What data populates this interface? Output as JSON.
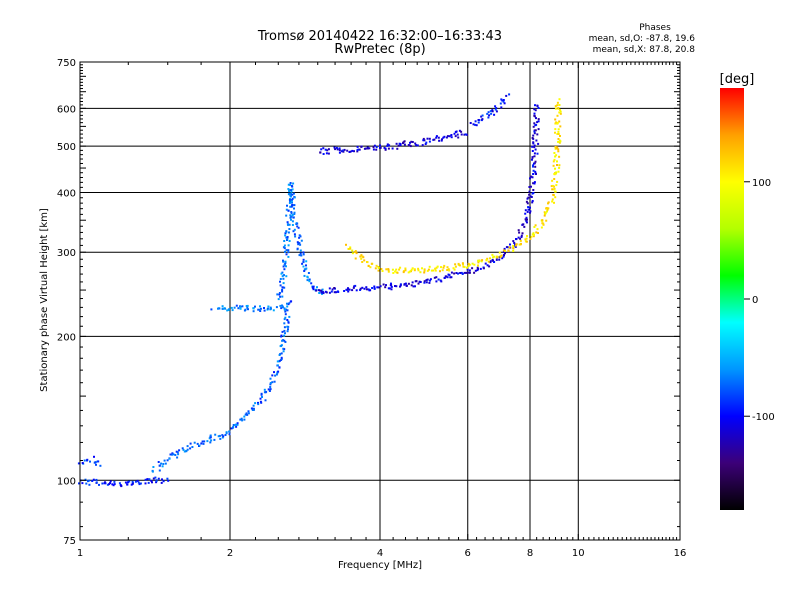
{
  "chart_data": {
    "type": "scatter",
    "title": "Tromsø 20140422 16:32:00–16:33:43",
    "subtitle": "RwPretec (8p)",
    "xlabel": "Frequency [MHz]",
    "ylabel": "Stationary phase Virtual Height [km]",
    "xscale": "log2",
    "yscale": "log",
    "xlim": [
      1,
      16
    ],
    "ylim": [
      75,
      750
    ],
    "grid": true,
    "x_ticks": [
      1,
      2,
      4,
      6,
      8,
      10,
      16
    ],
    "x_tick_labels": [
      "1",
      "2",
      "4",
      "6",
      "8",
      "10",
      "16"
    ],
    "y_ticks": [
      75,
      100,
      200,
      300,
      400,
      500,
      600,
      750
    ],
    "y_tick_labels": [
      "75",
      "100",
      "200",
      "300",
      "400",
      "500",
      "600",
      "750"
    ],
    "info": {
      "header": "Phases",
      "line_o": "mean, sd,O: -87.8, 19.6",
      "line_x": "mean, sd,X:  87.8, 20.8"
    },
    "colorbar": {
      "label": "[deg]",
      "range": [
        -180,
        180
      ],
      "ticks": [
        100,
        0,
        -100
      ],
      "tick_labels": [
        "100",
        "0",
        "-100"
      ],
      "colors": [
        "#000000",
        "#3c0078",
        "#0000ff",
        "#0096ff",
        "#00ffff",
        "#00ff00",
        "#b4ff00",
        "#ffff00",
        "#ffa000",
        "#ff0000"
      ]
    },
    "traces": [
      {
        "name": "",
        "phase": -95,
        "points": [
          [
            1.0,
            100
          ],
          [
            1.1,
            99
          ],
          [
            1.2,
            99
          ],
          [
            1.35,
            100
          ],
          [
            1.5,
            101
          ]
        ]
      },
      {
        "name": "",
        "phase": -85,
        "points": [
          [
            1.0,
            110
          ],
          [
            1.05,
            111
          ],
          [
            1.1,
            108
          ]
        ]
      },
      {
        "name": "",
        "phase": -75,
        "points": [
          [
            1.4,
            105
          ],
          [
            1.5,
            112
          ],
          [
            1.65,
            118
          ],
          [
            1.8,
            122
          ],
          [
            1.95,
            125
          ],
          [
            2.1,
            135
          ],
          [
            2.3,
            148
          ],
          [
            2.45,
            165
          ],
          [
            2.52,
            185
          ],
          [
            2.57,
            210
          ],
          [
            2.62,
            240
          ]
        ]
      },
      {
        "name": "",
        "phase": -65,
        "points": [
          [
            1.85,
            230
          ],
          [
            2.0,
            230
          ],
          [
            2.2,
            230
          ],
          [
            2.45,
            230
          ],
          [
            2.6,
            230
          ]
        ]
      },
      {
        "name": "",
        "phase": -70,
        "points": [
          [
            2.5,
            240
          ],
          [
            2.55,
            265
          ],
          [
            2.58,
            300
          ],
          [
            2.6,
            340
          ],
          [
            2.62,
            380
          ],
          [
            2.63,
            420
          ],
          [
            2.66,
            380
          ],
          [
            2.7,
            340
          ],
          [
            2.76,
            300
          ],
          [
            2.84,
            270
          ],
          [
            2.95,
            253
          ],
          [
            3.1,
            247
          ]
        ]
      },
      {
        "name": "",
        "phase": -110,
        "points": [
          [
            2.9,
            252
          ],
          [
            3.2,
            250
          ],
          [
            3.6,
            253
          ],
          [
            4.2,
            256
          ],
          [
            4.8,
            260
          ],
          [
            5.4,
            267
          ],
          [
            6.0,
            275
          ],
          [
            6.6,
            285
          ],
          [
            7.1,
            300
          ],
          [
            7.5,
            320
          ],
          [
            7.8,
            350
          ],
          [
            8.0,
            390
          ],
          [
            8.1,
            440
          ],
          [
            8.15,
            500
          ],
          [
            8.2,
            560
          ],
          [
            8.2,
            620
          ]
        ]
      },
      {
        "name": "",
        "phase": 110,
        "points": [
          [
            3.45,
            310
          ],
          [
            3.7,
            287
          ],
          [
            4.0,
            277
          ],
          [
            4.6,
            276
          ],
          [
            5.2,
            278
          ],
          [
            6.0,
            283
          ],
          [
            6.8,
            294
          ],
          [
            7.5,
            310
          ],
          [
            8.1,
            330
          ],
          [
            8.6,
            360
          ],
          [
            8.9,
            400
          ],
          [
            9.0,
            460
          ],
          [
            9.05,
            540
          ],
          [
            9.1,
            630
          ]
        ]
      },
      {
        "name": "",
        "phase": -110,
        "points": [
          [
            3.0,
            490
          ],
          [
            3.6,
            495
          ],
          [
            4.2,
            502
          ],
          [
            4.8,
            512
          ],
          [
            5.4,
            525
          ],
          [
            6.0,
            540
          ]
        ]
      },
      {
        "name": "",
        "phase": -95,
        "points": [
          [
            6.1,
            555
          ],
          [
            6.5,
            580
          ],
          [
            6.9,
            610
          ],
          [
            7.2,
            640
          ]
        ]
      }
    ]
  }
}
